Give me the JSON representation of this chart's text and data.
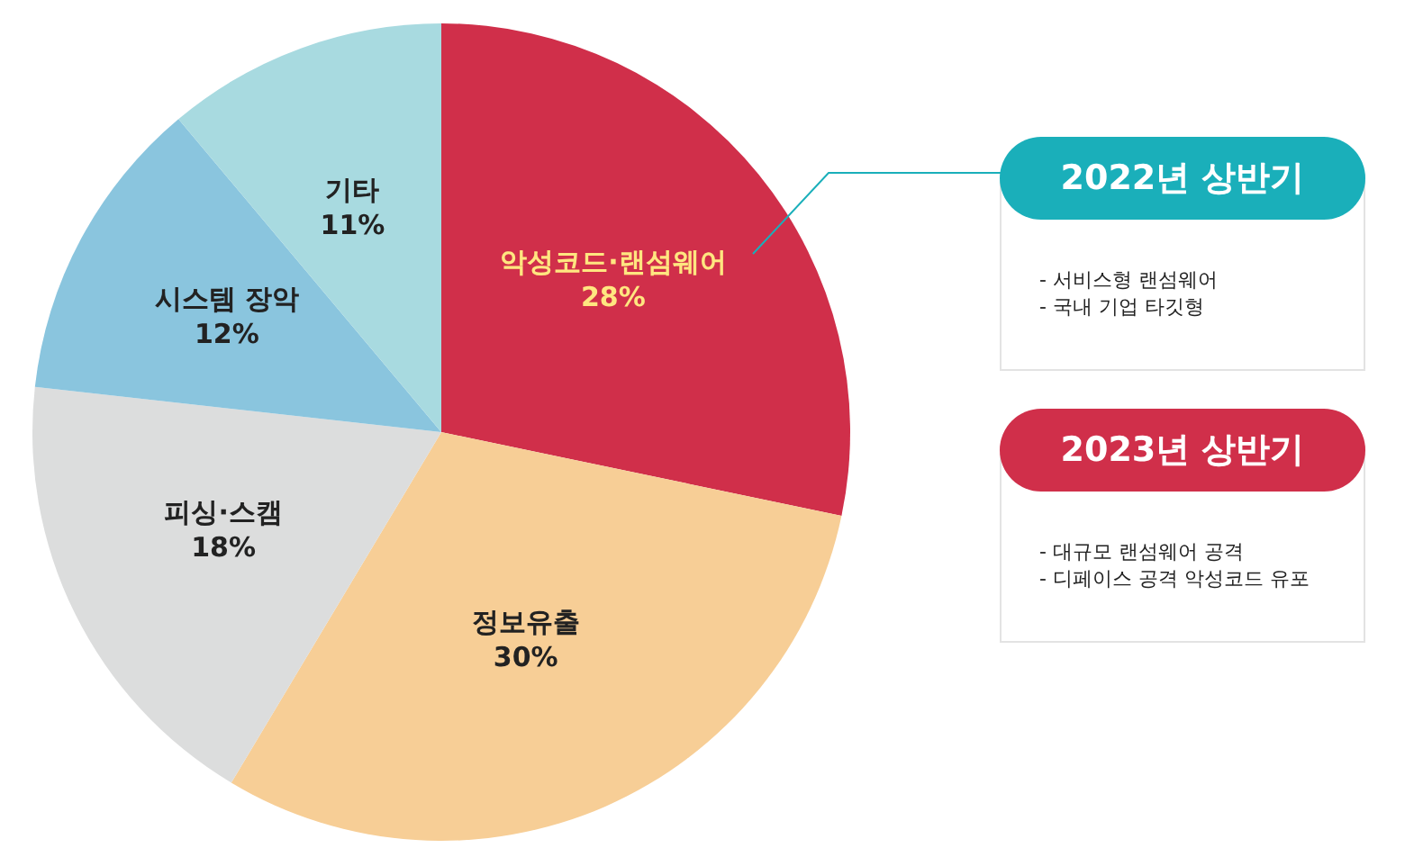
{
  "chart_data": {
    "type": "pie",
    "categories": [
      "악성코드·랜섬웨어",
      "정보유출",
      "피싱·스캠",
      "시스템 장악",
      "기타"
    ],
    "values": [
      28,
      30,
      18,
      12,
      11
    ],
    "value_labels": [
      "28%",
      "30%",
      "18%",
      "12%",
      "11%"
    ],
    "colors": [
      "#d02f4a",
      "#f7ce96",
      "#dcdddd",
      "#8ac5de",
      "#a8dae0"
    ],
    "annotations": [
      "2022년 상반기",
      "- 서비스형 랜섬웨어",
      "- 국내 기업 타깃형",
      "2023년 상반기",
      "- 대규모 랜섬웨어 공격",
      "- 디페이스 공격 악성코드 유포"
    ],
    "legend": false
  }
}
